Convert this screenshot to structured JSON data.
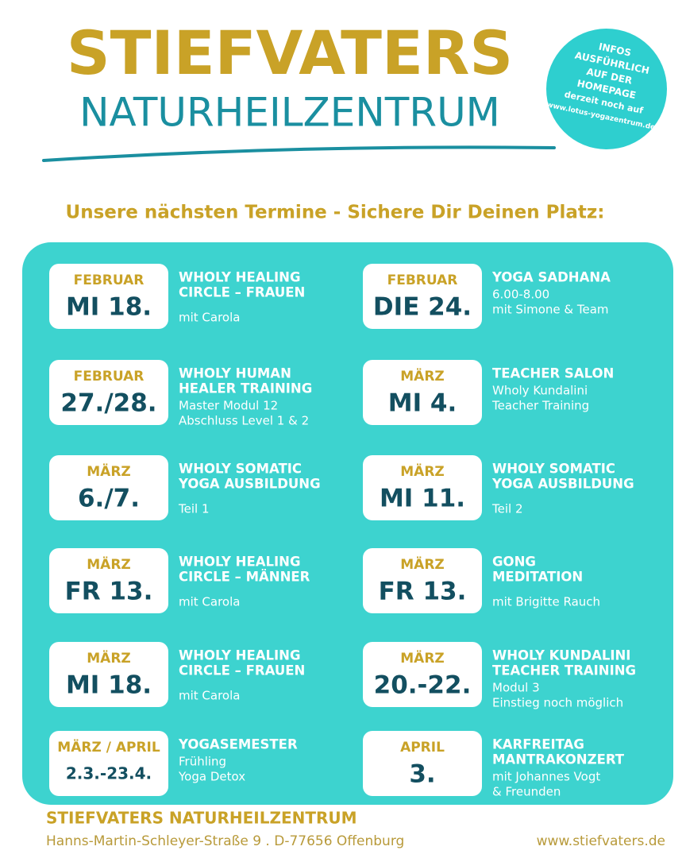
{
  "header": {
    "title": "STIEFVATERS",
    "subtitle": "NATURHEILZENTRUM",
    "badge": [
      "INFOS",
      "AUSFÜHRLICH",
      "AUF DER",
      "HOMEPAGE",
      "derzeit noch auf",
      "www.lotus-yogazentrum.de"
    ]
  },
  "heading": "Unsere nächsten Termine - Sichere Dir Deinen Platz:",
  "events": [
    {
      "month": "FEBRUAR",
      "date": "MI 18.",
      "title": [
        "WHOLY HEALING",
        "CIRCLE – FRAUEN"
      ],
      "details": [
        "mit Carola"
      ]
    },
    {
      "month": "FEBRUAR",
      "date": "DIE 24.",
      "title": [
        "YOGA SADHANA"
      ],
      "details": [
        "6.00-8.00",
        "mit Simone & Team"
      ]
    },
    {
      "month": "FEBRUAR",
      "date": "27./28.",
      "title": [
        "WHOLY HUMAN",
        "HEALER TRAINING"
      ],
      "details": [
        "Master Modul 12",
        "Abschluss Level 1 & 2"
      ]
    },
    {
      "month": "MÄRZ",
      "date": "MI 4.",
      "title": [
        "TEACHER SALON"
      ],
      "details": [
        "Wholy Kundalini",
        "Teacher Training"
      ]
    },
    {
      "month": "MÄRZ",
      "date": "6./7.",
      "title": [
        "WHOLY SOMATIC",
        "YOGA AUSBILDUNG"
      ],
      "details": [
        "Teil 1"
      ]
    },
    {
      "month": "MÄRZ",
      "date": "MI 11.",
      "title": [
        "WHOLY SOMATIC",
        "YOGA AUSBILDUNG"
      ],
      "details": [
        "Teil 2"
      ]
    },
    {
      "month": "MÄRZ",
      "date": "FR 13.",
      "title": [
        "WHOLY HEALING",
        "CIRCLE – MÄNNER"
      ],
      "details": [
        "mit Carola"
      ]
    },
    {
      "month": "MÄRZ",
      "date": "FR 13.",
      "title": [
        "GONG",
        "MEDITATION"
      ],
      "details": [
        "mit Brigitte Rauch"
      ]
    },
    {
      "month": "MÄRZ",
      "date": "MI 18.",
      "title": [
        "WHOLY HEALING",
        "CIRCLE – FRAUEN"
      ],
      "details": [
        "mit Carola"
      ]
    },
    {
      "month": "MÄRZ",
      "date": "20.-22.",
      "title": [
        "WHOLY KUNDALINI",
        "TEACHER TRAINING"
      ],
      "details": [
        "Modul 3",
        "Einstieg noch möglich"
      ]
    },
    {
      "month": "MÄRZ / APRIL",
      "date": "2.3.-23.4.",
      "title": [
        "YOGASEMESTER"
      ],
      "details": [
        "Frühling",
        "Yoga Detox"
      ]
    },
    {
      "month": "APRIL",
      "date": "3.",
      "title": [
        "KARFREITAG",
        "MANTRAKONZERT"
      ],
      "details": [
        "mit Johannes Vogt",
        "& Freunden"
      ]
    }
  ],
  "footer": {
    "name": "STIEFVATERS  NATURHEILZENTRUM",
    "address": "Hanns-Martin-Schleyer-Straße 9 . D-77656 Offenburg",
    "url": "www.stiefvaters.de"
  }
}
